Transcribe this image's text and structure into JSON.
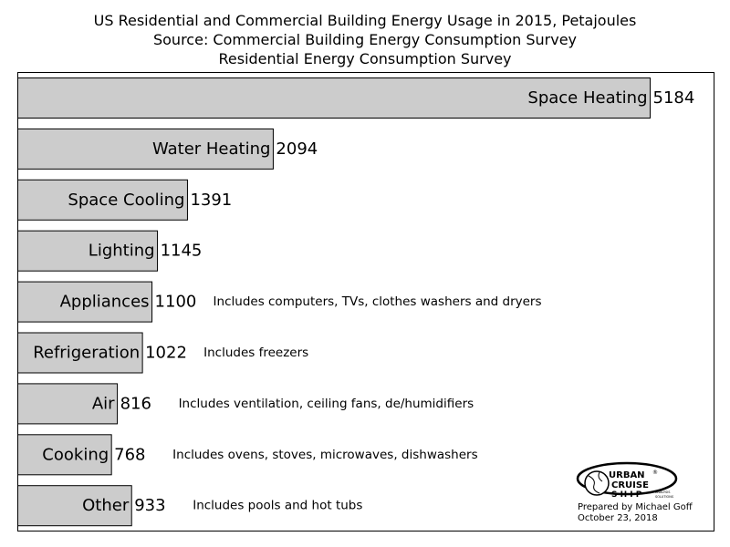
{
  "chart_data": {
    "type": "bar",
    "orientation": "horizontal",
    "title_lines": [
      "US Residential and Commercial Building Energy Usage in 2015, Petajoules",
      "Source: Commercial Building Energy Consumption Survey",
      "Residential Energy Consumption Survey"
    ],
    "xlabel": "",
    "ylabel": "",
    "grid": false,
    "bar_color": "#cccccc",
    "categories": [
      "Space Heating",
      "Water Heating",
      "Space Cooling",
      "Lighting",
      "Appliances",
      "Refrigeration",
      "Air",
      "Cooking",
      "Other"
    ],
    "values": [
      5184,
      2094,
      1391,
      1145,
      1100,
      1022,
      816,
      768,
      933
    ],
    "value_labels": [
      "5184",
      "2094",
      "1391",
      "1145",
      "1100",
      "1022",
      "816",
      "768",
      "933"
    ],
    "notes": [
      "",
      "",
      "",
      "",
      "Includes computers, TVs, clothes washers and dryers",
      "Includes freezers",
      "Includes ventilation, ceiling fans, de/humidifiers",
      "Includes ovens, stoves, microwaves, dishwashers",
      "Includes pools and hot tubs"
    ]
  },
  "logo": {
    "line1": "URBAN",
    "registered": "®",
    "line2": "CRUISE",
    "line3": "S H I P",
    "tagline_1": "ANALYSIS",
    "tagline_2": "SOLUTIONS"
  },
  "credit": {
    "prepared_by": "Prepared by Michael Goff",
    "date": "October 23, 2018"
  }
}
